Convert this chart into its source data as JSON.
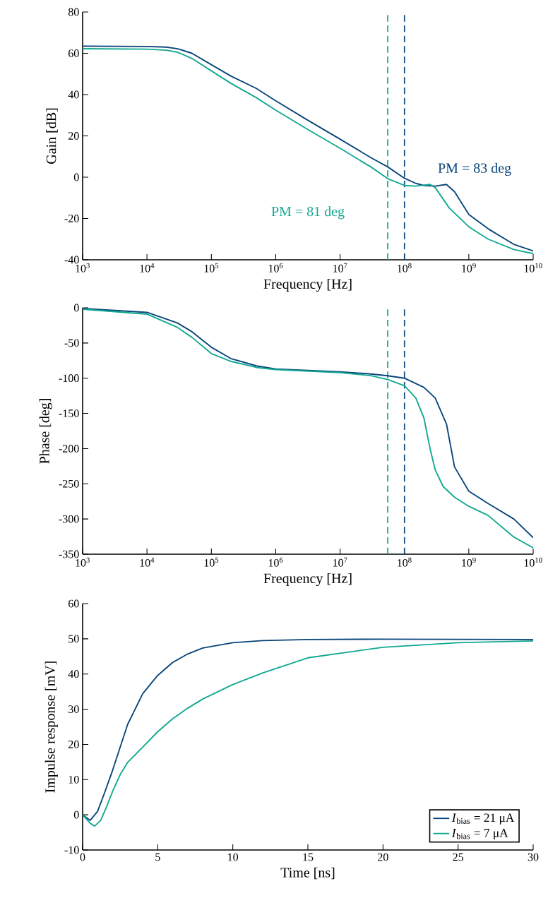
{
  "chart_data": [
    {
      "type": "line",
      "log": "x",
      "xlabel": "Frequency [Hz]",
      "ylabel": "Gain [dB]",
      "xlim": [
        1000,
        10000000000
      ],
      "ylim": [
        -40,
        80
      ],
      "xticks": [
        {
          "value": 1000,
          "label": "10$^{3}$"
        },
        {
          "value": 10000,
          "label": "10$^{4}$"
        },
        {
          "value": 100000,
          "label": "10$^{5}$"
        },
        {
          "value": 1000000,
          "label": "10$^{6}$"
        },
        {
          "value": 10000000,
          "label": "10$^{7}$"
        },
        {
          "value": 100000000,
          "label": "10$^{8}$"
        },
        {
          "value": 1000000000,
          "label": "10$^{9}$"
        },
        {
          "value": 10000000000,
          "label": "10$^{10}$"
        }
      ],
      "yticks": [
        -40,
        -20,
        0,
        20,
        40,
        60,
        80
      ],
      "series": [
        {
          "color": "#08457a",
          "x": [
            1000,
            10000,
            20000,
            30000,
            50000,
            100000,
            200000,
            500000,
            1000000,
            3000000,
            10000000,
            30000000,
            55000000,
            100000000,
            150000000,
            200000000,
            300000000,
            450000000,
            600000000,
            1000000000,
            2000000000,
            5000000000,
            10000000000
          ],
          "values": [
            63.5,
            63.3,
            63,
            62.2,
            60,
            54.5,
            49,
            43,
            37,
            28,
            18.4,
            9.5,
            5,
            -0.5,
            -3,
            -4,
            -4.3,
            -3.5,
            -7,
            -18,
            -25,
            -32.5,
            -35.7
          ]
        },
        {
          "color": "#10a890",
          "x": [
            1000,
            10000,
            20000,
            30000,
            50000,
            100000,
            200000,
            500000,
            1000000,
            3000000,
            10000000,
            30000000,
            55000000,
            100000000,
            150000000,
            250000000,
            300000000,
            500000000,
            1000000000,
            2000000000,
            5000000000,
            10000000000
          ],
          "values": [
            62.2,
            62,
            61.5,
            60.5,
            57.5,
            51.5,
            45.5,
            38.5,
            32.5,
            23.5,
            14,
            5,
            -0.7,
            -4,
            -4.3,
            -3.5,
            -5,
            -15,
            -24,
            -30,
            -35,
            -37
          ]
        }
      ],
      "ref_lines": [
        {
          "axis": "x",
          "value": 55000000,
          "color": "#10a890",
          "line_style": "dashed"
        },
        {
          "axis": "x",
          "value": 100000000,
          "color": "#08457a",
          "line_style": "dashed"
        }
      ],
      "annotations": [
        "PM = 83 deg",
        "PM = 81 deg"
      ]
    },
    {
      "type": "line",
      "log": "x",
      "xlabel": "Frequency [Hz]",
      "ylabel": "Phase [deg]",
      "xlim": [
        1000,
        10000000000
      ],
      "ylim": [
        -350,
        0
      ],
      "xticks": [
        {
          "value": 1000,
          "label": "10$^{3}$"
        },
        {
          "value": 10000,
          "label": "10$^{4}$"
        },
        {
          "value": 100000,
          "label": "10$^{5}$"
        },
        {
          "value": 1000000,
          "label": "10$^{6}$"
        },
        {
          "value": 10000000,
          "label": "10$^{7}$"
        },
        {
          "value": 100000000,
          "label": "10$^{8}$"
        },
        {
          "value": 1000000000,
          "label": "10$^{9}$"
        },
        {
          "value": 10000000000,
          "label": "10$^{10}$"
        }
      ],
      "yticks": [
        -350,
        -300,
        -250,
        -200,
        -150,
        -100,
        -50,
        0
      ],
      "series": [
        {
          "color": "#08457a",
          "x": [
            1000,
            10000,
            30000,
            50000,
            100000,
            200000,
            500000,
            1000000,
            10000000,
            30000000,
            55000000,
            100000000,
            200000000,
            300000000,
            450000000,
            600000000,
            1000000000,
            2000000000,
            5000000000,
            10000000000
          ],
          "values": [
            -1,
            -6.5,
            -21.7,
            -34,
            -56,
            -72,
            -82.5,
            -87,
            -91,
            -94,
            -96.5,
            -100,
            -113,
            -128,
            -165,
            -226,
            -260.5,
            -278,
            -300,
            -326.5
          ]
        },
        {
          "color": "#10a890",
          "x": [
            1000,
            10000,
            30000,
            50000,
            100000,
            200000,
            500000,
            1000000,
            10000000,
            30000000,
            55000000,
            100000000,
            150000000,
            200000000,
            250000000,
            300000000,
            400000000,
            600000000,
            1000000000,
            2000000000,
            5000000000,
            10000000000
          ],
          "values": [
            -2,
            -9,
            -28,
            -42,
            -65,
            -76,
            -84.7,
            -87.7,
            -92,
            -96.4,
            -102,
            -110.7,
            -128,
            -156,
            -200,
            -230,
            -254,
            -269,
            -282,
            -295,
            -325.6,
            -341
          ]
        }
      ],
      "ref_lines": [
        {
          "axis": "x",
          "value": 55000000,
          "color": "#10a890",
          "line_style": "dashed"
        },
        {
          "axis": "x",
          "value": 100000000,
          "color": "#08457a",
          "line_style": "dashed"
        }
      ]
    },
    {
      "type": "line",
      "xlabel": "Time [ns]",
      "ylabel": "Impulse response [mV]",
      "xlim": [
        0,
        30
      ],
      "ylim": [
        -10,
        60
      ],
      "xticks": [
        0,
        5,
        10,
        15,
        20,
        25,
        30
      ],
      "yticks": [
        -10,
        0,
        10,
        20,
        30,
        40,
        50,
        60
      ],
      "legend": "bottom right",
      "series": [
        {
          "name": "*I*$_{bias}$ = 21 μA",
          "color": "#08457a",
          "x": [
            0,
            0.5,
            1,
            1.5,
            2,
            3,
            4,
            5,
            6,
            7,
            8,
            10,
            12,
            15,
            20,
            30
          ],
          "values": [
            0,
            -1.6,
            1,
            6.7,
            12.7,
            25.7,
            34.4,
            39.6,
            43.3,
            45.7,
            47.4,
            48.9,
            49.5,
            49.8,
            49.9,
            49.8
          ]
        },
        {
          "name": "*I*$_{bias}$ = 7 μA",
          "color": "#10a890",
          "x": [
            0,
            0.5,
            0.8,
            1.2,
            1.6,
            2,
            2.5,
            3,
            4,
            5,
            6,
            7,
            8,
            10,
            12,
            15,
            20,
            25,
            30
          ],
          "values": [
            0,
            -2.4,
            -3.2,
            -1.6,
            2.3,
            6.7,
            11.4,
            14.9,
            19.2,
            23.6,
            27.3,
            30.3,
            32.9,
            37,
            40.3,
            44.6,
            47.6,
            48.9,
            49.4
          ]
        }
      ]
    }
  ]
}
